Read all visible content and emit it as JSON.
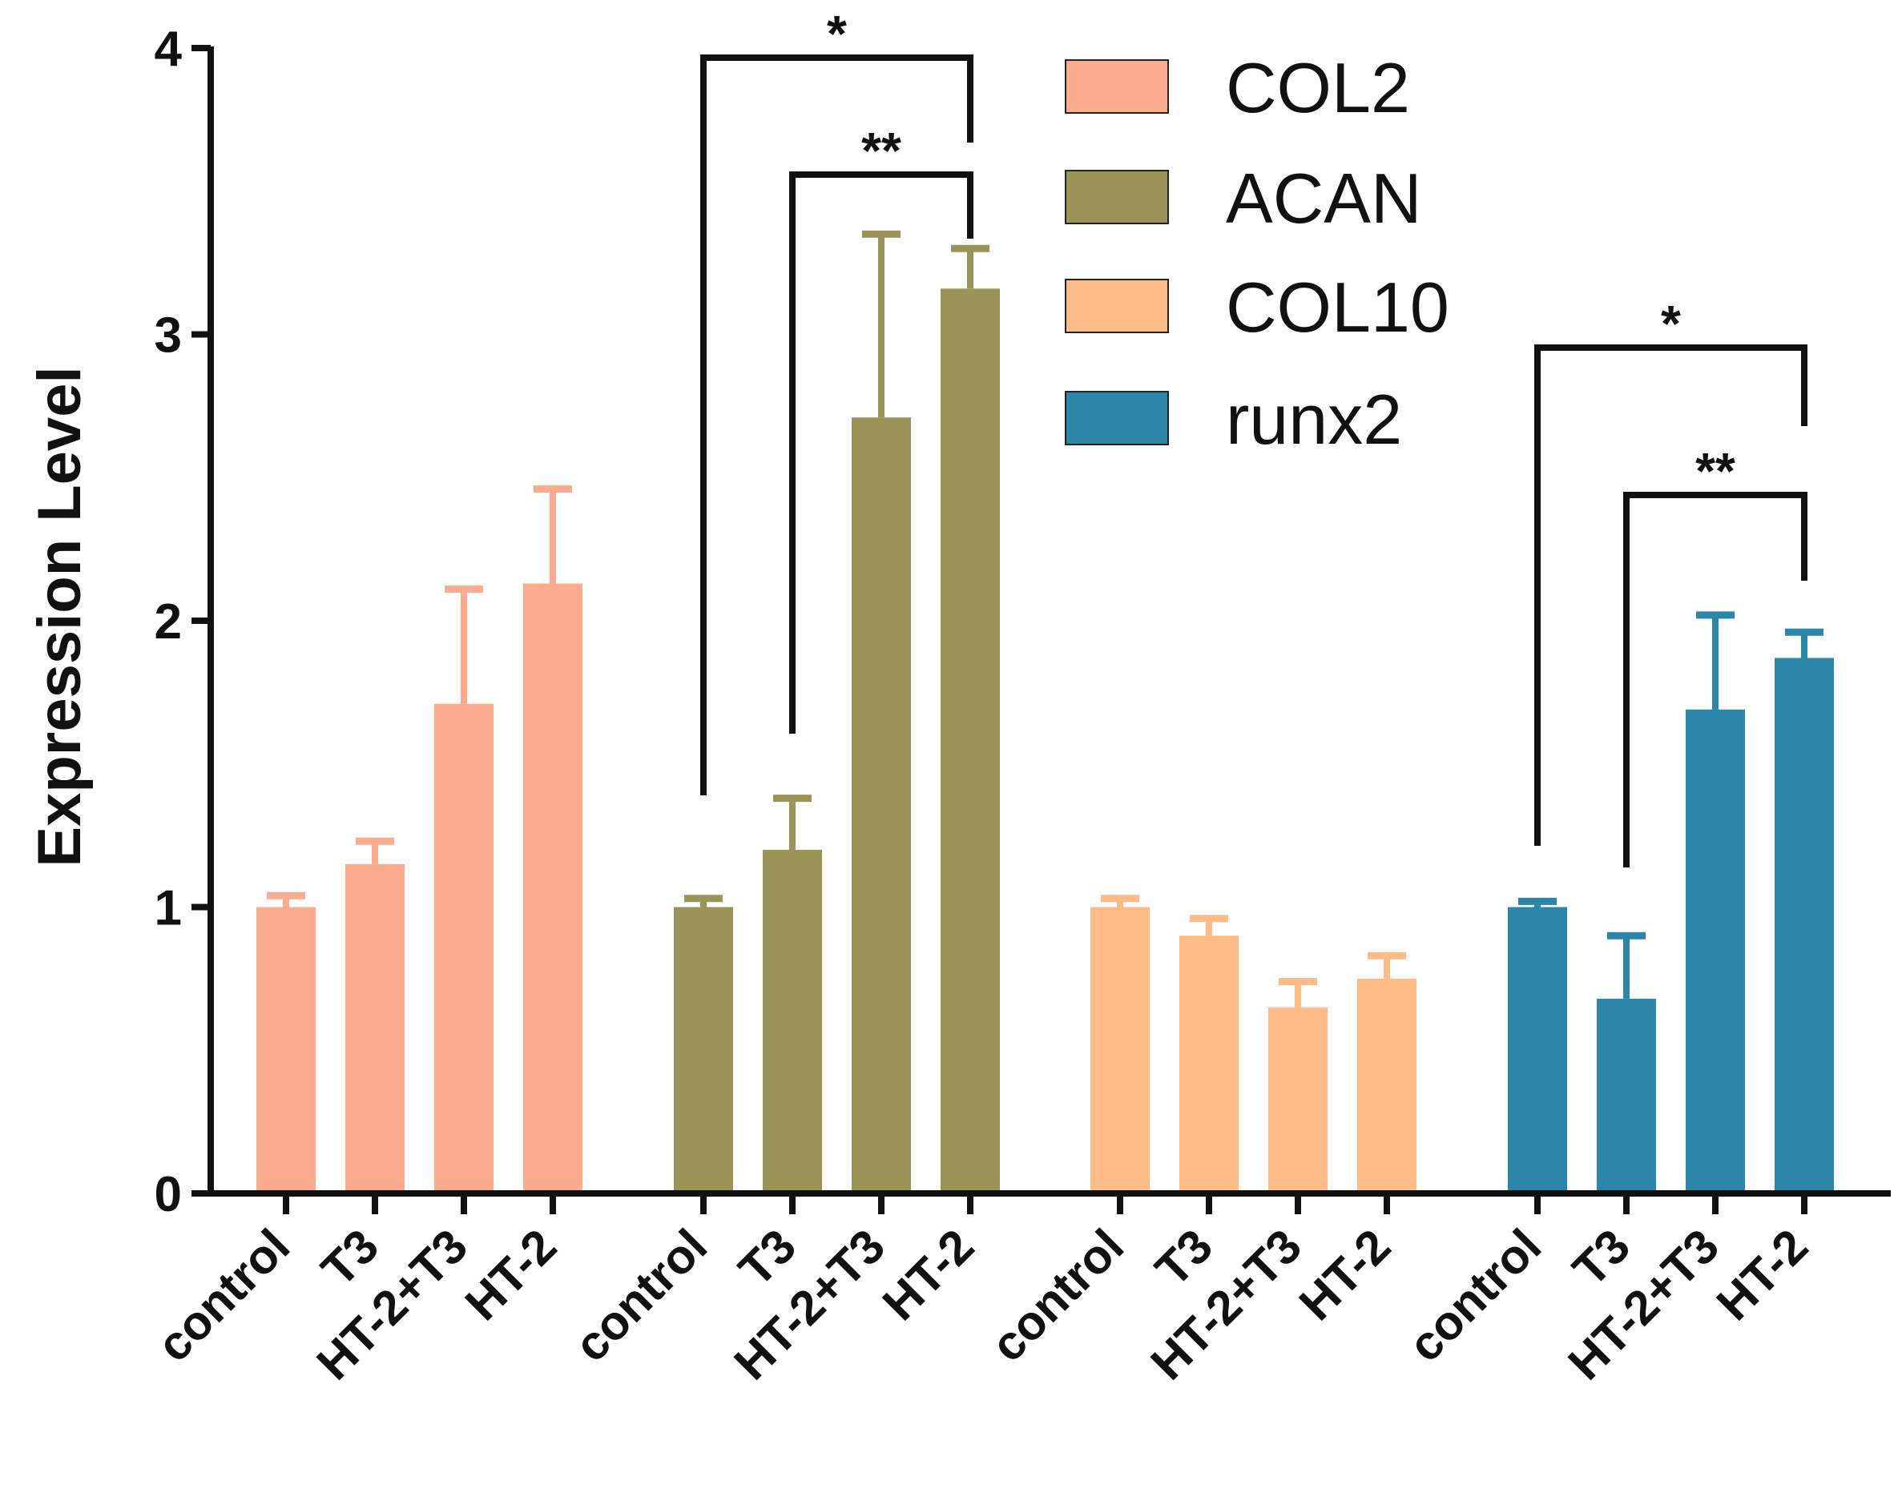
{
  "chart_data": {
    "type": "bar",
    "title": "",
    "xlabel": "",
    "ylabel": "Expression Level",
    "ylim": [
      0,
      4
    ],
    "yticks": [
      "0",
      "1",
      "2",
      "3",
      "4"
    ],
    "categories": [
      "control",
      "T3",
      "HT-2+T3",
      "HT-2"
    ],
    "grid": false,
    "legend_position": "top-center",
    "series": [
      {
        "name": "COL2",
        "color": "#fbab8e",
        "values": [
          1.0,
          1.15,
          1.71,
          2.13
        ],
        "errors": [
          0.04,
          0.08,
          0.4,
          0.33
        ]
      },
      {
        "name": "ACAN",
        "color": "#9b9457",
        "values": [
          1.0,
          1.2,
          2.71,
          3.16
        ],
        "errors": [
          0.03,
          0.18,
          0.64,
          0.14
        ]
      },
      {
        "name": "COL10",
        "color": "#fdbb88",
        "values": [
          1.0,
          0.9,
          0.65,
          0.75
        ],
        "errors": [
          0.03,
          0.06,
          0.09,
          0.08
        ]
      },
      {
        "name": "runx2",
        "color": "#2b86a7",
        "values": [
          1.0,
          0.68,
          1.69,
          1.87
        ],
        "errors": [
          0.02,
          0.22,
          0.33,
          0.09
        ]
      }
    ],
    "annotations": [
      {
        "series": "ACAN",
        "from": "control",
        "to": "HT-2",
        "label": "*"
      },
      {
        "series": "ACAN",
        "from": "T3",
        "to": "HT-2",
        "label": "**"
      },
      {
        "series": "runx2",
        "from": "control",
        "to": "HT-2",
        "label": "*"
      },
      {
        "series": "runx2",
        "from": "T3",
        "to": "HT-2",
        "label": "**"
      }
    ]
  }
}
